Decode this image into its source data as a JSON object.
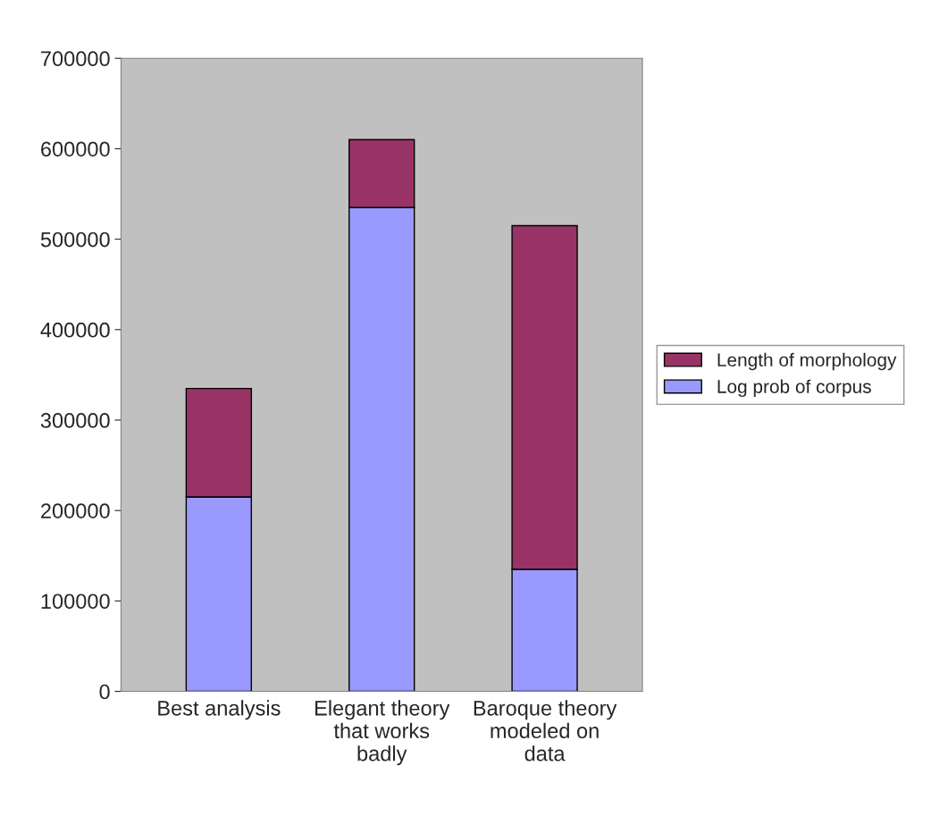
{
  "chart_data": {
    "type": "bar",
    "stacked": true,
    "categories": [
      "Best analysis",
      "Elegant theory\nthat works\nbadly",
      "Baroque theory\nmodeled on\ndata"
    ],
    "series": [
      {
        "name": "Log prob of corpus",
        "color": "#9999ff",
        "values": [
          215000,
          535000,
          135000
        ]
      },
      {
        "name": "Length of morphology",
        "color": "#993366",
        "values": [
          120000,
          75000,
          380000
        ]
      }
    ],
    "ylim": [
      0,
      700000
    ],
    "yticks": [
      0,
      100000,
      200000,
      300000,
      400000,
      500000,
      600000,
      700000
    ],
    "grid": false,
    "legend": "right"
  }
}
